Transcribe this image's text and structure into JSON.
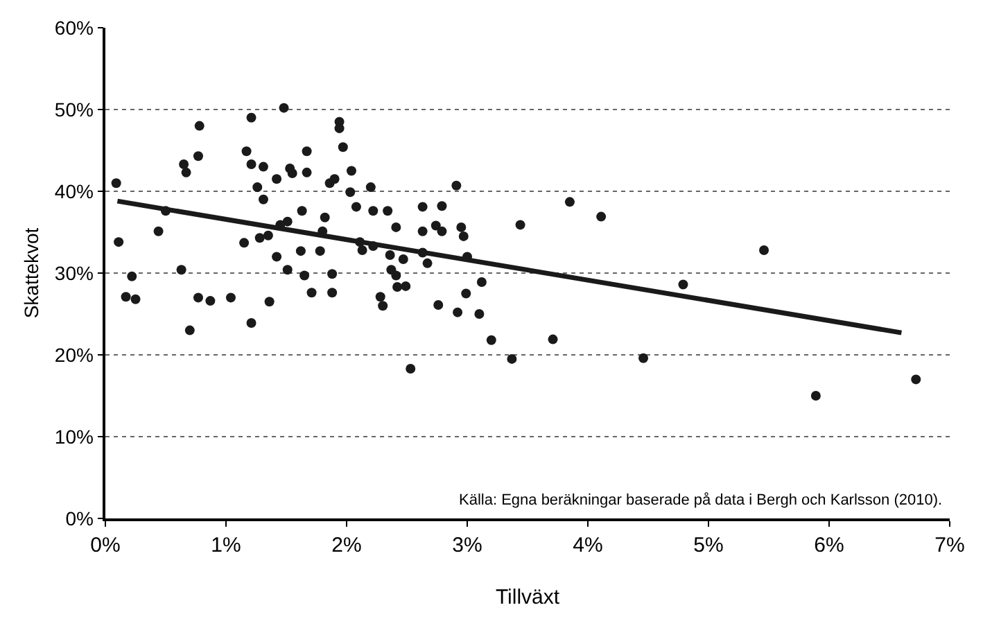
{
  "chart_data": {
    "type": "scatter",
    "xlabel": "Tillväxt",
    "ylabel": "Skattekvot",
    "xlim": [
      0,
      7
    ],
    "xticks": [
      {
        "value": 0,
        "label": "0%"
      },
      {
        "value": 1,
        "label": "1%"
      },
      {
        "value": 2,
        "label": "2%"
      },
      {
        "value": 3,
        "label": "3%"
      },
      {
        "value": 4,
        "label": "4%"
      },
      {
        "value": 5,
        "label": "5%"
      },
      {
        "value": 6,
        "label": "6%"
      },
      {
        "value": 7,
        "label": "7%"
      }
    ],
    "ylim": [
      0,
      60
    ],
    "yticks": [
      {
        "value": 0,
        "label": "0%"
      },
      {
        "value": 10,
        "label": "10%"
      },
      {
        "value": 20,
        "label": "20%"
      },
      {
        "value": 30,
        "label": "30%"
      },
      {
        "value": 40,
        "label": "40%"
      },
      {
        "value": 50,
        "label": "50%"
      },
      {
        "value": 60,
        "label": "60%"
      }
    ],
    "grid": "y",
    "marker": "circle",
    "annotations": [
      "Källa: Egna beräkningar baserade på data i Bergh och Karlsson (2010)."
    ],
    "series": [
      {
        "color": "#1a1a1a",
        "x": [
          0.09,
          0.11,
          0.17,
          0.22,
          0.25,
          0.44,
          0.5,
          0.63,
          0.65,
          0.67,
          0.7,
          0.77,
          0.77,
          0.78,
          0.87,
          1.04,
          1.15,
          1.17,
          1.21,
          1.21,
          1.21,
          1.26,
          1.28,
          1.31,
          1.31,
          1.35,
          1.36,
          1.42,
          1.42,
          1.45,
          1.48,
          1.51,
          1.51,
          1.53,
          1.55,
          1.62,
          1.63,
          1.65,
          1.67,
          1.67,
          1.71,
          1.78,
          1.8,
          1.82,
          1.86,
          1.88,
          1.88,
          1.9,
          1.94,
          1.94,
          1.97,
          2.03,
          2.04,
          2.08,
          2.11,
          2.13,
          2.2,
          2.22,
          2.22,
          2.28,
          2.3,
          2.34,
          2.36,
          2.37,
          2.41,
          2.41,
          2.42,
          2.47,
          2.49,
          2.53,
          2.63,
          2.63,
          2.63,
          2.67,
          2.74,
          2.76,
          2.79,
          2.79,
          2.91,
          2.92,
          2.95,
          2.97,
          2.99,
          3.0,
          3.1,
          3.12,
          3.2,
          3.37,
          3.44,
          3.71,
          3.85,
          4.11,
          4.46,
          4.79,
          5.46,
          5.89,
          6.72
        ],
        "values": [
          41.0,
          33.8,
          27.1,
          29.6,
          26.8,
          35.1,
          37.6,
          30.4,
          43.3,
          42.3,
          23.0,
          27.0,
          44.3,
          48.0,
          26.6,
          27.0,
          33.7,
          44.9,
          43.3,
          23.9,
          49.0,
          40.5,
          34.3,
          43.0,
          39.0,
          34.6,
          26.5,
          41.5,
          32.0,
          35.9,
          50.2,
          36.3,
          30.4,
          42.8,
          42.2,
          32.7,
          37.6,
          29.7,
          44.9,
          42.3,
          27.6,
          32.7,
          35.1,
          36.8,
          41.0,
          29.9,
          27.6,
          41.5,
          48.5,
          47.7,
          45.4,
          39.9,
          42.5,
          38.1,
          33.8,
          32.8,
          40.5,
          33.3,
          37.6,
          27.1,
          26.0,
          37.6,
          32.2,
          30.4,
          35.6,
          29.7,
          28.3,
          31.7,
          28.4,
          18.3,
          38.1,
          35.1,
          32.5,
          31.2,
          35.8,
          26.1,
          38.2,
          35.1,
          40.7,
          25.2,
          35.6,
          34.5,
          27.5,
          32.0,
          25.0,
          28.9,
          21.8,
          19.5,
          35.9,
          21.9,
          38.7,
          36.9,
          19.6,
          28.6,
          32.8,
          15.0,
          17.0
        ]
      },
      {
        "type": "line",
        "color": "#1a1a1a",
        "marker": "none",
        "x": [
          0.1,
          6.6
        ],
        "values": [
          38.8,
          22.7
        ]
      }
    ]
  }
}
